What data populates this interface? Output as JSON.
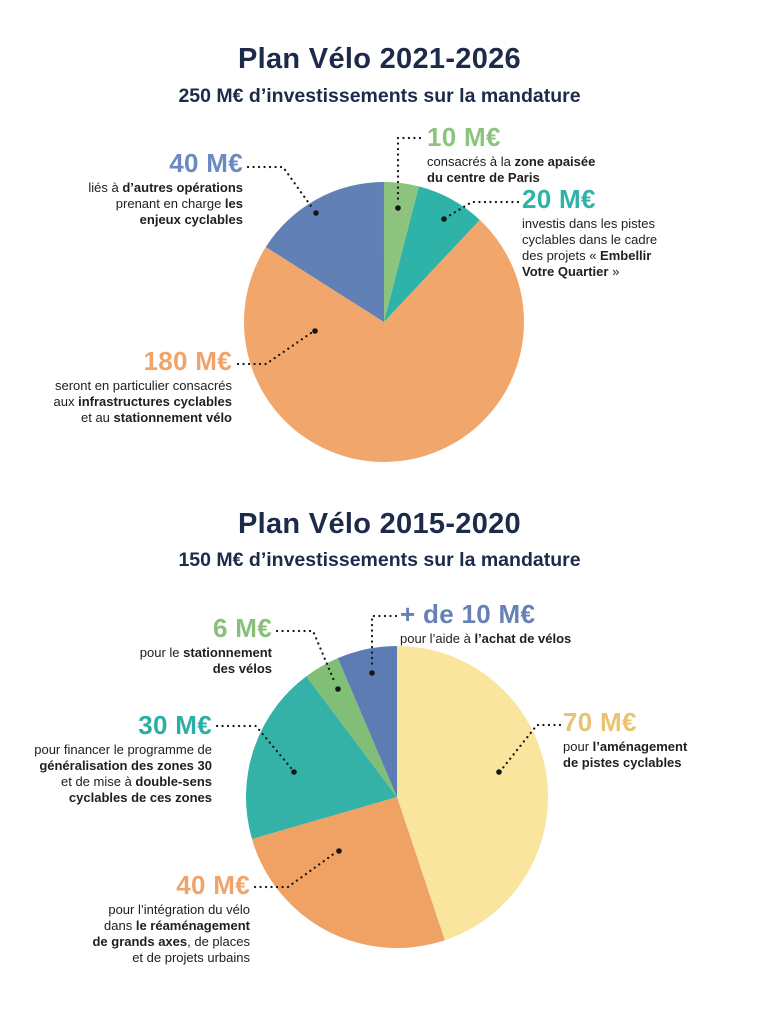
{
  "colors": {
    "title": "#1c2b49",
    "body_text": "#21201e",
    "leader_line": "#161616",
    "background": "#ffffff"
  },
  "chart_data": [
    {
      "type": "pie",
      "title": "Plan Vélo 2021-2026",
      "subtitle": "250 M€ d’investissements sur la mandature",
      "total_investment": "250 M€",
      "legend_position": "callouts",
      "slices": [
        {
          "amount": "10 M€",
          "value": 10,
          "color": "#8cc47e",
          "label_color": "#8cc47e",
          "description": "consacrés à la **zone apaisée**\n**du centre de Paris**"
        },
        {
          "amount": "20 M€",
          "value": 20,
          "color": "#2fb2a7",
          "label_color": "#2fb2a7",
          "description": "investis dans les pistes\ncyclables dans le cadre\ndes projets « **Embellir**\n**Votre Quartier** »"
        },
        {
          "amount": "180 M€",
          "value": 180,
          "color": "#f1a76c",
          "label_color": "#f0a46a",
          "description": "seront en particulier consacrés\naux **infrastructures cyclables**\net au **stationnement vélo**"
        },
        {
          "amount": "40 M€",
          "value": 40,
          "color": "#6080b6",
          "label_color": "#6a8ac1",
          "description": "liés à **d’autres opérations**\nprenant en charge **les**\n**enjeux cyclables**"
        }
      ]
    },
    {
      "type": "pie",
      "title": "Plan Vélo 2015-2020",
      "subtitle": "150 M€ d’investissements sur la mandature",
      "total_investment": "150 M€",
      "legend_position": "callouts",
      "slices": [
        {
          "amount": "70 M€",
          "value": 70,
          "color": "#f9e59e",
          "label_color": "#e9c470",
          "description": "pour **l’aménagement**\n**de pistes cyclables**"
        },
        {
          "amount": "40 M€",
          "value": 40,
          "color": "#efa263",
          "label_color": "#f0a46a",
          "description": "pour l’intégration du vélo\ndans **le réaménagement**\n**de grands axes**, de places\net de projets urbains"
        },
        {
          "amount": "30 M€",
          "value": 30,
          "color": "#35b2a8",
          "label_color": "#2aafa5",
          "description": "pour financer le programme de\n**généralisation des zones 30**\net de mise à **double-sens**\n**cyclables de ces zones**"
        },
        {
          "amount": "6 M€",
          "value": 6,
          "color": "#80bf75",
          "label_color": "#8abf7b",
          "description": "pour le **stationnement**\n**des vélos**"
        },
        {
          "amount": "+ de 10 M€",
          "value": 10,
          "color": "#5d7cb3",
          "label_color": "#6781b7",
          "description": "pour l’aide à **l’achat de vélos**"
        }
      ]
    }
  ]
}
